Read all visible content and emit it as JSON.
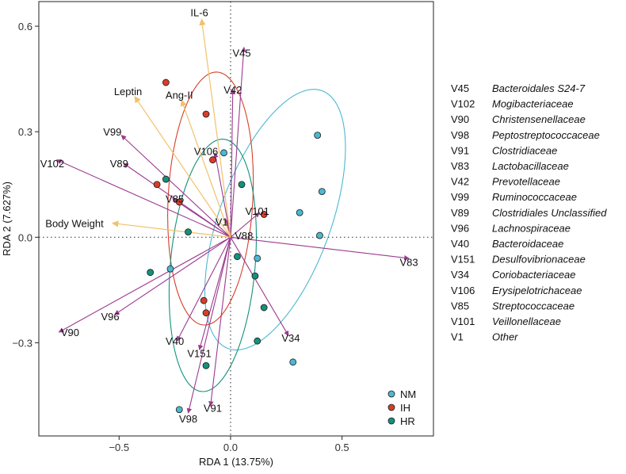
{
  "chart_data": {
    "type": "scatter",
    "subtype": "RDA biplot",
    "xlabel": "RDA 1 (13.75%)",
    "ylabel": "RDA 2 (7.627%)",
    "xlim": [
      -0.86,
      0.91
    ],
    "ylim": [
      -0.565,
      0.67
    ],
    "xticks": [
      -0.5,
      0.0,
      0.5
    ],
    "xtick_labels": [
      "−0.5",
      "0.0",
      "0.5"
    ],
    "yticks": [
      -0.3,
      0.0,
      0.3,
      0.6
    ],
    "ytick_labels": [
      "−0.3",
      "0.0",
      "0.3",
      "0.6"
    ],
    "grid": false,
    "reference_lines": {
      "x": 0,
      "y": 0,
      "style": "dotted"
    },
    "groups": [
      {
        "name": "NM",
        "color": "#4cb8d2",
        "ellipse": {
          "cx": 0.2,
          "cy": 0.05,
          "rx": 0.25,
          "ry": 0.39,
          "angle_deg": 20
        }
      },
      {
        "name": "IH",
        "color": "#d93d2a",
        "ellipse": {
          "cx": -0.09,
          "cy": 0.11,
          "rx": 0.19,
          "ry": 0.36,
          "angle_deg": 3
        }
      },
      {
        "name": "HR",
        "color": "#14917c",
        "ellipse": {
          "cx": -0.08,
          "cy": -0.08,
          "rx": 0.19,
          "ry": 0.36,
          "angle_deg": 5
        }
      }
    ],
    "points": [
      {
        "group": "NM",
        "x": 0.39,
        "y": 0.29
      },
      {
        "group": "NM",
        "x": 0.41,
        "y": 0.13
      },
      {
        "group": "NM",
        "x": 0.31,
        "y": 0.07
      },
      {
        "group": "NM",
        "x": 0.4,
        "y": 0.005
      },
      {
        "group": "NM",
        "x": 0.12,
        "y": -0.06
      },
      {
        "group": "NM",
        "x": 0.28,
        "y": -0.355
      },
      {
        "group": "NM",
        "x": -0.27,
        "y": -0.09
      },
      {
        "group": "NM",
        "x": -0.23,
        "y": -0.49
      },
      {
        "group": "NM",
        "x": -0.03,
        "y": 0.24
      },
      {
        "group": "IH",
        "x": -0.29,
        "y": 0.44
      },
      {
        "group": "IH",
        "x": -0.11,
        "y": 0.35
      },
      {
        "group": "IH",
        "x": -0.08,
        "y": 0.22
      },
      {
        "group": "IH",
        "x": -0.33,
        "y": 0.15
      },
      {
        "group": "IH",
        "x": -0.23,
        "y": 0.1
      },
      {
        "group": "IH",
        "x": 0.15,
        "y": 0.065
      },
      {
        "group": "IH",
        "x": -0.12,
        "y": -0.18
      },
      {
        "group": "IH",
        "x": -0.11,
        "y": -0.215
      },
      {
        "group": "HR",
        "x": -0.29,
        "y": 0.165
      },
      {
        "group": "HR",
        "x": 0.05,
        "y": 0.15
      },
      {
        "group": "HR",
        "x": -0.19,
        "y": 0.015
      },
      {
        "group": "HR",
        "x": 0.03,
        "y": -0.055
      },
      {
        "group": "HR",
        "x": -0.36,
        "y": -0.1
      },
      {
        "group": "HR",
        "x": 0.11,
        "y": -0.11
      },
      {
        "group": "HR",
        "x": 0.15,
        "y": -0.2
      },
      {
        "group": "HR",
        "x": 0.12,
        "y": -0.295
      },
      {
        "group": "HR",
        "x": -0.11,
        "y": -0.365
      }
    ],
    "env_vectors": [
      {
        "label": "IL-6",
        "x": -0.13,
        "y": 0.62,
        "lx": -0.14,
        "ly": 0.64
      },
      {
        "label": "Leptin",
        "x": -0.43,
        "y": 0.4,
        "lx": -0.46,
        "ly": 0.415
      },
      {
        "label": "Ang-II",
        "x": -0.22,
        "y": 0.39,
        "lx": -0.23,
        "ly": 0.405
      },
      {
        "label": "Body Weight",
        "x": -0.53,
        "y": 0.04,
        "lx": -0.7,
        "ly": 0.04
      }
    ],
    "taxa_vectors": [
      {
        "label": "V45",
        "x": 0.06,
        "y": 0.54,
        "lx": 0.05,
        "ly": 0.525
      },
      {
        "label": "V42",
        "x": 0.01,
        "y": 0.42,
        "lx": 0.01,
        "ly": 0.42
      },
      {
        "label": "V99",
        "x": -0.49,
        "y": 0.29,
        "lx": -0.53,
        "ly": 0.3
      },
      {
        "label": "V102",
        "x": -0.78,
        "y": 0.22,
        "lx": -0.8,
        "ly": 0.21
      },
      {
        "label": "V89",
        "x": -0.48,
        "y": 0.21,
        "lx": -0.5,
        "ly": 0.21
      },
      {
        "label": "V106",
        "x": -0.07,
        "y": 0.24,
        "lx": -0.11,
        "ly": 0.245
      },
      {
        "label": "V85",
        "x": -0.26,
        "y": 0.11,
        "lx": -0.25,
        "ly": 0.11
      },
      {
        "label": "V101",
        "x": 0.13,
        "y": 0.07,
        "lx": 0.12,
        "ly": 0.075
      },
      {
        "label": "V1",
        "x": -0.02,
        "y": 0.05,
        "lx": -0.04,
        "ly": 0.045
      },
      {
        "label": "V88",
        "x": 0.0,
        "y": 0.01,
        "lx": 0.06,
        "ly": 0.005
      },
      {
        "label": "V83",
        "x": 0.8,
        "y": -0.06,
        "lx": 0.8,
        "ly": -0.07
      },
      {
        "label": "V96",
        "x": -0.52,
        "y": -0.22,
        "lx": -0.54,
        "ly": -0.225
      },
      {
        "label": "V90",
        "x": -0.77,
        "y": -0.27,
        "lx": -0.72,
        "ly": -0.27
      },
      {
        "label": "V40",
        "x": -0.24,
        "y": -0.295,
        "lx": -0.25,
        "ly": -0.295
      },
      {
        "label": "V151",
        "x": -0.14,
        "y": -0.32,
        "lx": -0.14,
        "ly": -0.33
      },
      {
        "label": "V34",
        "x": 0.26,
        "y": -0.28,
        "lx": 0.27,
        "ly": -0.285
      },
      {
        "label": "V91",
        "x": -0.09,
        "y": -0.48,
        "lx": -0.08,
        "ly": -0.485
      },
      {
        "label": "V98",
        "x": -0.19,
        "y": -0.5,
        "lx": -0.19,
        "ly": -0.515
      }
    ],
    "env_arrow_color": "#f2c16a",
    "taxa_arrow_color": "#9c3a8f",
    "legend": {
      "position": "bottom-right",
      "entries": [
        "NM",
        "IH",
        "HR"
      ]
    }
  },
  "taxa_legend": [
    {
      "code": "V45",
      "name": "Bacteroidales S24-7"
    },
    {
      "code": "V102",
      "name": "Mogibacteriaceae"
    },
    {
      "code": "V90",
      "name": "Christensenellaceae"
    },
    {
      "code": "V98",
      "name": "Peptostreptococcaceae"
    },
    {
      "code": "V91",
      "name": "Clostridiaceae"
    },
    {
      "code": "V83",
      "name": "Lactobacillaceae"
    },
    {
      "code": "V42",
      "name": "Prevotellaceae"
    },
    {
      "code": "V99",
      "name": "Ruminococcaceae"
    },
    {
      "code": "V89",
      "name": "Clostridiales Unclassified"
    },
    {
      "code": "V96",
      "name": "Lachnospiraceae"
    },
    {
      "code": "V40",
      "name": "Bacteroidaceae"
    },
    {
      "code": "V151",
      "name": "Desulfovibrionaceae"
    },
    {
      "code": "V34",
      "name": "Coriobacteriaceae"
    },
    {
      "code": "V106",
      "name": "Erysipelotrichaceae"
    },
    {
      "code": "V85",
      "name": "Streptococcaceae"
    },
    {
      "code": "V101",
      "name": "Veillonellaceae"
    },
    {
      "code": "V1",
      "name": "Other"
    }
  ]
}
